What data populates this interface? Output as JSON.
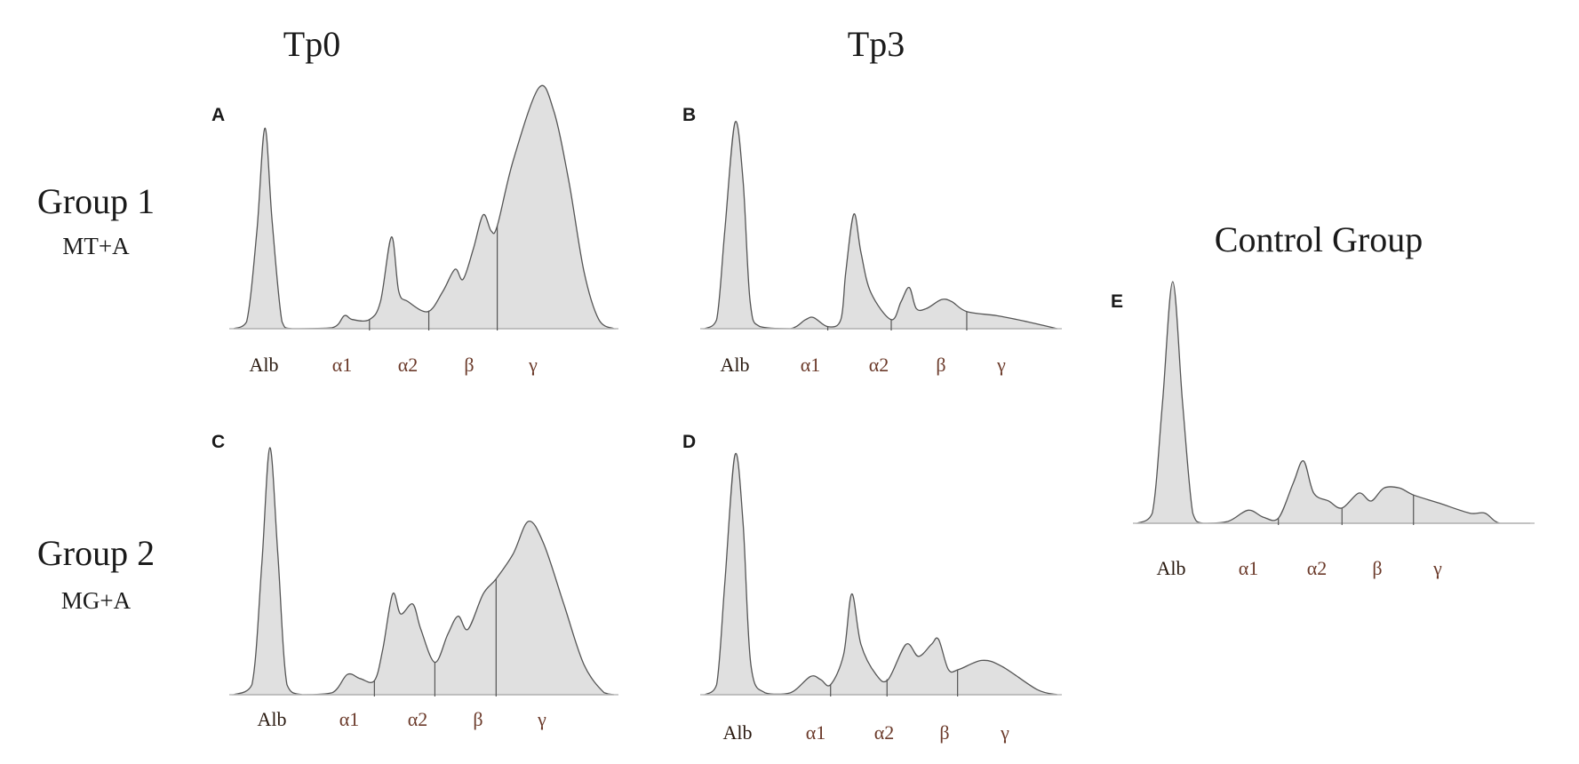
{
  "headings": {
    "tp0": "Tp0",
    "tp3": "Tp3",
    "group1": "Group 1",
    "group1_sub": "MT+A",
    "group2": "Group 2",
    "group2_sub": "MG+A",
    "control": "Control Group"
  },
  "colors": {
    "fill": "#e0e0e0",
    "stroke": "#555555",
    "label": "#6b3a2a"
  },
  "chart_data": [
    {
      "type": "area",
      "panel": "A",
      "fraction_labels": [
        "Alb",
        "α1",
        "α2",
        "β",
        "γ"
      ],
      "dividers": [
        35.7,
        51.3,
        69.3
      ],
      "points": [
        [
          0,
          0
        ],
        [
          3.4,
          2.9
        ],
        [
          6.1,
          40.6
        ],
        [
          8.2,
          83.3
        ],
        [
          10.1,
          44.8
        ],
        [
          12.7,
          2.9
        ],
        [
          15.3,
          0
        ],
        [
          25.9,
          0.4
        ],
        [
          29.1,
          5.4
        ],
        [
          31.2,
          3.8
        ],
        [
          35.7,
          3.8
        ],
        [
          38.6,
          11.3
        ],
        [
          41.5,
          38.1
        ],
        [
          43.4,
          15.5
        ],
        [
          45.8,
          11.3
        ],
        [
          51.1,
          7.1
        ],
        [
          55,
          15.5
        ],
        [
          58.2,
          24.7
        ],
        [
          60.3,
          20.5
        ],
        [
          63,
          33.1
        ],
        [
          65.6,
          47.3
        ],
        [
          67.7,
          40.6
        ],
        [
          69.3,
          42.7
        ],
        [
          73.5,
          69.9
        ],
        [
          80.2,
          100
        ],
        [
          84.1,
          90.8
        ],
        [
          88.1,
          61.5
        ],
        [
          92.1,
          23.8
        ],
        [
          96,
          3.8
        ],
        [
          100,
          0
        ]
      ]
    },
    {
      "type": "area",
      "panel": "B",
      "fraction_labels": [
        "Alb",
        "α1",
        "α2",
        "β",
        "γ"
      ],
      "dividers": [
        34.9,
        52.9,
        74.3
      ],
      "points": [
        [
          0,
          0
        ],
        [
          3.4,
          4.4
        ],
        [
          5.7,
          47.3
        ],
        [
          8.6,
          100
        ],
        [
          10.9,
          71.7
        ],
        [
          12.9,
          13.2
        ],
        [
          15.7,
          1
        ],
        [
          24.3,
          0
        ],
        [
          28.6,
          4.4
        ],
        [
          30.9,
          5.4
        ],
        [
          34.9,
          1
        ],
        [
          38.6,
          4.4
        ],
        [
          40,
          27.3
        ],
        [
          42.3,
          55.6
        ],
        [
          44.3,
          37.1
        ],
        [
          47.1,
          17.6
        ],
        [
          52.9,
          4.4
        ],
        [
          55.7,
          13.2
        ],
        [
          58,
          20
        ],
        [
          60,
          9.8
        ],
        [
          62.9,
          9.8
        ],
        [
          67.1,
          14.1
        ],
        [
          70,
          13.2
        ],
        [
          74.3,
          8.3
        ],
        [
          82.9,
          6.3
        ],
        [
          91.4,
          3.4
        ],
        [
          100,
          0
        ]
      ]
    },
    {
      "type": "area",
      "panel": "C",
      "fraction_labels": [
        "Alb",
        "α1",
        "α2",
        "β",
        "γ"
      ],
      "dividers": [
        37,
        52.9,
        69
      ],
      "points": [
        [
          0,
          0
        ],
        [
          4.8,
          4.1
        ],
        [
          7.4,
          53.1
        ],
        [
          9.5,
          100
        ],
        [
          11.6,
          57.1
        ],
        [
          14,
          4.1
        ],
        [
          18,
          0
        ],
        [
          25.9,
          0.8
        ],
        [
          29.9,
          8.2
        ],
        [
          33.3,
          6.5
        ],
        [
          37,
          5.7
        ],
        [
          39.2,
          18.4
        ],
        [
          41.8,
          40.8
        ],
        [
          43.9,
          32.7
        ],
        [
          47.1,
          36.7
        ],
        [
          49.2,
          26.5
        ],
        [
          52.9,
          13.1
        ],
        [
          56.3,
          24.5
        ],
        [
          59,
          31.8
        ],
        [
          61.6,
          26.5
        ],
        [
          65.6,
          40.8
        ],
        [
          69,
          46.9
        ],
        [
          73.5,
          57.1
        ],
        [
          77.5,
          70.2
        ],
        [
          81.5,
          61.2
        ],
        [
          86.8,
          36.7
        ],
        [
          92.1,
          12.2
        ],
        [
          97.4,
          0.8
        ],
        [
          100,
          0
        ]
      ]
    },
    {
      "type": "area",
      "panel": "D",
      "fraction_labels": [
        "Alb",
        "α1",
        "α2",
        "β",
        "γ"
      ],
      "dividers": [
        35.7,
        51.7,
        71.7
      ],
      "points": [
        [
          0,
          0
        ],
        [
          3.4,
          4.2
        ],
        [
          5.7,
          46.2
        ],
        [
          8.6,
          100
        ],
        [
          10.9,
          71.4
        ],
        [
          13.1,
          12.6
        ],
        [
          17.1,
          0.8
        ],
        [
          24.3,
          0.8
        ],
        [
          30,
          7.6
        ],
        [
          32.9,
          6.3
        ],
        [
          35.7,
          4.2
        ],
        [
          39.4,
          16.8
        ],
        [
          41.7,
          42
        ],
        [
          44.3,
          21
        ],
        [
          48.6,
          8.4
        ],
        [
          52,
          6.3
        ],
        [
          57.1,
          21
        ],
        [
          60.6,
          16
        ],
        [
          64.3,
          21
        ],
        [
          66.3,
          23.1
        ],
        [
          69.1,
          10.5
        ],
        [
          72,
          10.5
        ],
        [
          78.6,
          14.3
        ],
        [
          84.3,
          11.8
        ],
        [
          94.3,
          2.1
        ],
        [
          100,
          0
        ]
      ]
    },
    {
      "type": "area",
      "panel": "E",
      "fraction_labels": [
        "Alb",
        "α1",
        "α2",
        "β",
        "γ"
      ],
      "dividers": [
        35.9,
        52.1,
        70.3
      ],
      "points": [
        [
          0,
          0
        ],
        [
          3.8,
          4.2
        ],
        [
          6.4,
          50
        ],
        [
          9,
          100
        ],
        [
          11.5,
          50
        ],
        [
          14.1,
          4.2
        ],
        [
          16.7,
          0
        ],
        [
          23.1,
          0.8
        ],
        [
          28.2,
          5.4
        ],
        [
          32.1,
          2.5
        ],
        [
          35.9,
          2.1
        ],
        [
          39.7,
          16.7
        ],
        [
          42.3,
          25.8
        ],
        [
          44.9,
          12.5
        ],
        [
          48.7,
          9.2
        ],
        [
          52.1,
          6.3
        ],
        [
          56.4,
          12.5
        ],
        [
          59.5,
          9.2
        ],
        [
          62.8,
          14.6
        ],
        [
          66.7,
          14.6
        ],
        [
          70.3,
          11.7
        ],
        [
          76.9,
          8.3
        ],
        [
          84.6,
          4.2
        ],
        [
          88.5,
          4.2
        ],
        [
          92.3,
          0
        ],
        [
          100,
          0
        ]
      ]
    }
  ]
}
